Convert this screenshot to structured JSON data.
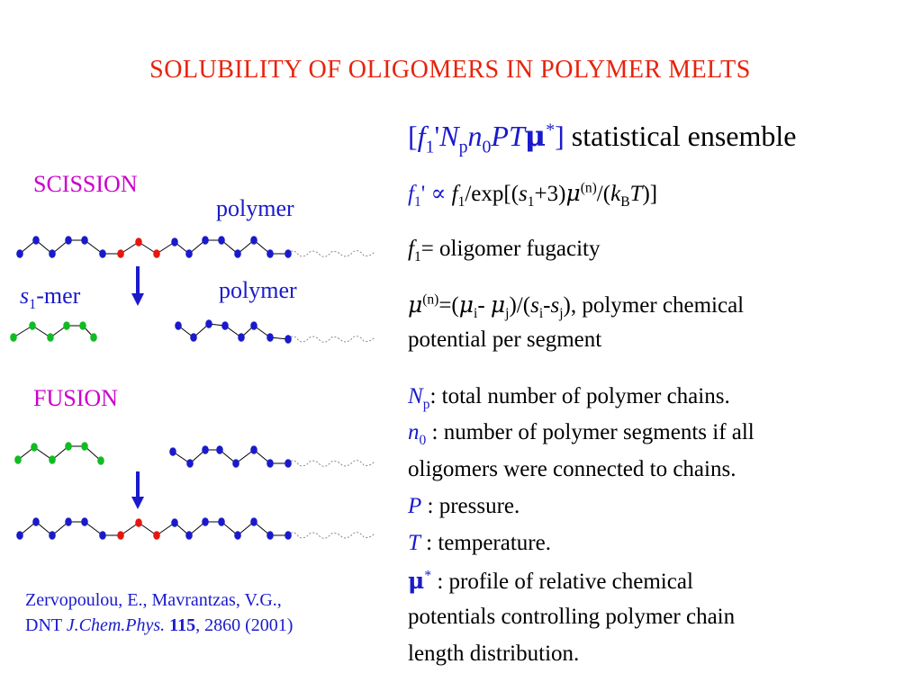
{
  "title": "SOLUBILITY  OF  OLIGOMERS  IN  POLYMER  MELTS",
  "left": {
    "scission_label": "SCISSION",
    "polymer_label_top": "polymer",
    "polymer_label_right": "polymer",
    "mer_symbol": "s",
    "mer_sub": "1",
    "mer_suffix": "-mer",
    "fusion_label": "FUSION",
    "reference": {
      "authors": "Zervopoulou, E., Mavrantzas, V.G.,",
      "prefix": "DNT ",
      "journal": "J.Chem.Phys.",
      "volume": "115",
      "rest": ", 2860  (2001)"
    }
  },
  "colors": {
    "title": "#e8230c",
    "label_magenta": "#cc00cc",
    "label_blue": "#1a1acc",
    "polymer_bead": "#1a1acc",
    "oligomer_bead": "#11bb22",
    "junction_bead": "#e8160c",
    "arrow": "#1a1acc"
  },
  "right": {
    "ensemble": {
      "open": "[",
      "f": "f",
      "f_sub": "1",
      "prime": "'",
      "N": "N",
      "N_sub": "p",
      "n": "n",
      "n_sub": "0",
      "PT": "PT",
      "mu": "μ",
      "mu_sup": "*",
      "close": "]",
      "text": " statistical ensemble"
    },
    "eq1": {
      "f": "f",
      "f_sub": "1",
      "prime": "'",
      "prop": " ∝ ",
      "f2": "f",
      "f2_sub": "1",
      "exp_open": "/exp[(",
      "s": "s",
      "s_sub": "1",
      "plus": "+3)",
      "mu": "μ",
      "mu_sup": "(n)",
      "div": "/(",
      "k": "k",
      "k_sub": "B",
      "T": "T",
      "close": ")]"
    },
    "eq2": {
      "f": "f",
      "f_sub": "1",
      "text": "= oligomer fugacity"
    },
    "eq3": {
      "mu": "μ",
      "mu_sup": "(n)",
      "eq_open": "=(",
      "mu_i": "μ",
      "i_sub": "i",
      "minus": "- ",
      "mu_j": "μ",
      "j_sub": "j",
      "mid": ")/(",
      "s_i": "s",
      "si_sub": "i",
      "dash": "-",
      "s_j": "s",
      "sj_sub": "j",
      "tail": "), polymer chemical",
      "line2": "potential per segment"
    },
    "defs": {
      "Np": "N",
      "Np_sub": "p",
      "Np_text": ": total number of polymer chains.",
      "n0": "n",
      "n0_sub": "0",
      "n0_text": " : number of polymer segments if  all",
      "n0_line2": "oligomers were connected to chains.",
      "P": "P",
      "P_text": "  : pressure.",
      "T": "T",
      "T_text": "   : temperature.",
      "mu": "μ",
      "mu_sup": "*",
      "mu_text": " : profile of relative chemical",
      "mu_line2": "potentials controlling polymer chain",
      "mu_line3": "length distribution."
    }
  }
}
